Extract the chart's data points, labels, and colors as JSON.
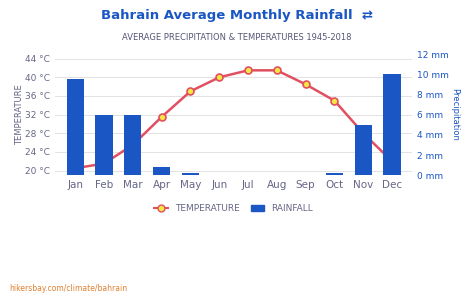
{
  "title": "Bahrain Average Monthly Rainfall ≈",
  "subtitle": "AVERAGE PRECIPITATION & TEMPERATURES 1945-2018",
  "months": [
    "Jan",
    "Feb",
    "Mar",
    "Apr",
    "May",
    "Jun",
    "Jul",
    "Aug",
    "Sep",
    "Oct",
    "Nov",
    "Dec"
  ],
  "rainfall_mm": [
    9.5,
    6.0,
    6.0,
    0.8,
    0.2,
    0.0,
    0.0,
    0.0,
    0.0,
    0.2,
    5.0,
    10.0
  ],
  "temperature_c": [
    20.5,
    21.5,
    25.5,
    31.5,
    37.0,
    40.0,
    41.5,
    41.5,
    38.5,
    35.0,
    28.0,
    22.0
  ],
  "bar_color": "#1a56c4",
  "line_color": "#e05060",
  "marker_face": "#f5e642",
  "marker_edge": "#e05060",
  "bg_color": "#ffffff",
  "grid_color": "#dddddd",
  "title_color": "#1a56c4",
  "subtitle_color": "#555577",
  "axis_color": "#666688",
  "temp_ylim": [
    19,
    45
  ],
  "rain_ylim": [
    0,
    12
  ],
  "temp_yticks": [
    20,
    24,
    28,
    32,
    36,
    40,
    44
  ],
  "rain_yticks": [
    0,
    2,
    4,
    6,
    8,
    10,
    12
  ],
  "left_ylabel": "TEMPERATURE",
  "right_ylabel": "Precipitation",
  "watermark": "hikersbay.com/climate/bahrain"
}
